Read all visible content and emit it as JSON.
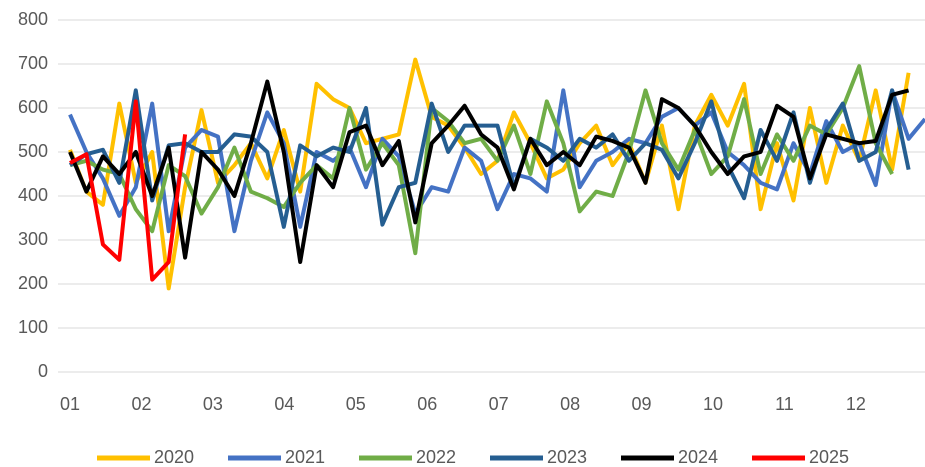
{
  "chart_data": {
    "type": "line",
    "x": [
      1,
      2,
      3,
      4,
      5,
      6,
      7,
      8,
      9,
      10,
      11,
      12,
      13,
      14,
      15,
      16,
      17,
      18,
      19,
      20,
      21,
      22,
      23,
      24,
      25,
      26,
      27,
      28,
      29,
      30,
      31,
      32,
      33,
      34,
      35,
      36,
      37,
      38,
      39,
      40,
      41,
      42,
      43,
      44,
      45,
      46,
      47,
      48,
      49,
      50,
      51,
      52,
      53
    ],
    "xlim": [
      1,
      53
    ],
    "xticks": [
      {
        "value": 1,
        "label": "01"
      },
      {
        "value": 5.35,
        "label": "02"
      },
      {
        "value": 9.69,
        "label": "03"
      },
      {
        "value": 14.04,
        "label": "04"
      },
      {
        "value": 18.38,
        "label": "05"
      },
      {
        "value": 22.73,
        "label": "06"
      },
      {
        "value": 27.07,
        "label": "07"
      },
      {
        "value": 31.42,
        "label": "08"
      },
      {
        "value": 35.76,
        "label": "09"
      },
      {
        "value": 40.11,
        "label": "10"
      },
      {
        "value": 44.45,
        "label": "11"
      },
      {
        "value": 48.8,
        "label": "12"
      }
    ],
    "ylim": [
      0,
      800
    ],
    "yticks": [
      0,
      100,
      200,
      300,
      400,
      500,
      600,
      700,
      800
    ],
    "grid": true,
    "legend": "bottom",
    "series": [
      {
        "name": "2020",
        "color": "#ffc000",
        "values": [
          505,
          410,
          380,
          610,
          430,
          500,
          190,
          420,
          595,
          430,
          470,
          520,
          440,
          550,
          410,
          655,
          620,
          600,
          520,
          530,
          540,
          710,
          580,
          560,
          510,
          450,
          480,
          590,
          520,
          440,
          460,
          520,
          560,
          470,
          520,
          430,
          560,
          370,
          560,
          630,
          560,
          655,
          370,
          520,
          390,
          600,
          430,
          560,
          480,
          640,
          460,
          680,
          null
        ]
      },
      {
        "name": "2021",
        "color": "#4472c4",
        "values": [
          585,
          500,
          440,
          355,
          420,
          610,
          320,
          510,
          550,
          535,
          320,
          480,
          590,
          520,
          330,
          500,
          480,
          510,
          420,
          530,
          490,
          360,
          420,
          410,
          510,
          480,
          370,
          450,
          440,
          410,
          640,
          420,
          480,
          500,
          530,
          520,
          580,
          600,
          560,
          590,
          500,
          470,
          430,
          415,
          520,
          450,
          570,
          500,
          520,
          425,
          640,
          530,
          575
        ]
      },
      {
        "name": "2022",
        "color": "#70ad47",
        "values": [
          470,
          480,
          460,
          450,
          370,
          320,
          470,
          445,
          360,
          420,
          510,
          410,
          395,
          375,
          430,
          470,
          440,
          600,
          460,
          520,
          470,
          270,
          600,
          570,
          520,
          530,
          480,
          560,
          450,
          615,
          520,
          365,
          410,
          400,
          500,
          640,
          520,
          460,
          550,
          450,
          490,
          620,
          450,
          540,
          480,
          560,
          540,
          600,
          695,
          520,
          450,
          null,
          null
        ]
      },
      {
        "name": "2023",
        "color": "#255e91",
        "values": [
          470,
          495,
          505,
          430,
          640,
          390,
          515,
          520,
          500,
          500,
          540,
          535,
          500,
          330,
          515,
          490,
          510,
          500,
          600,
          335,
          420,
          430,
          610,
          500,
          560,
          560,
          560,
          420,
          530,
          510,
          480,
          530,
          510,
          540,
          480,
          520,
          505,
          440,
          520,
          615,
          470,
          395,
          550,
          480,
          590,
          430,
          550,
          610,
          480,
          500,
          640,
          460,
          null
        ]
      },
      {
        "name": "2024",
        "color": "#000000",
        "values": [
          500,
          410,
          490,
          450,
          500,
          400,
          510,
          260,
          500,
          460,
          400,
          520,
          660,
          500,
          250,
          470,
          420,
          545,
          560,
          470,
          525,
          340,
          520,
          560,
          605,
          540,
          510,
          415,
          530,
          470,
          500,
          470,
          535,
          525,
          510,
          430,
          620,
          600,
          560,
          500,
          450,
          490,
          500,
          605,
          580,
          440,
          540,
          530,
          520,
          525,
          630,
          640,
          null
        ]
      },
      {
        "name": "2025",
        "color": "#ff0000",
        "values": [
          475,
          495,
          290,
          255,
          615,
          210,
          250,
          540,
          null,
          null,
          null,
          null,
          null,
          null,
          null,
          null,
          null,
          null,
          null,
          null,
          null,
          null,
          null,
          null,
          null,
          null,
          null,
          null,
          null,
          null,
          null,
          null,
          null,
          null,
          null,
          null,
          null,
          null,
          null,
          null,
          null,
          null,
          null,
          null,
          null,
          null,
          null,
          null,
          null,
          null,
          null,
          null,
          null
        ]
      }
    ]
  }
}
